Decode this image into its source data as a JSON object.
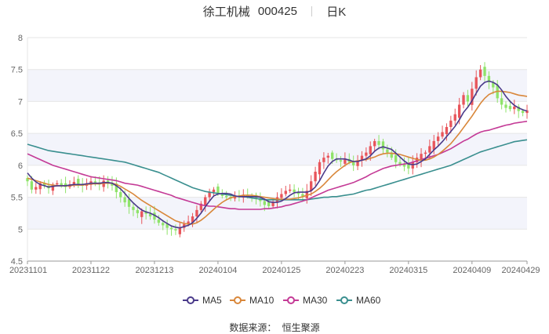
{
  "header": {
    "stock_name": "徐工机械",
    "stock_code": "000425",
    "period": "日K"
  },
  "source": {
    "label": "数据来源：",
    "value": "恒生聚源"
  },
  "colors": {
    "up": "#e8555b",
    "down": "#8fe36a",
    "ma5": "#4a3a8a",
    "ma10": "#d9873a",
    "ma30": "#c43a96",
    "ma60": "#3a8f8f",
    "grid": "#e6e6e6",
    "band": "#f3f4fb"
  },
  "chart_data": {
    "type": "candlestick",
    "yticks": [
      4.5,
      5,
      5.5,
      6,
      6.5,
      7,
      7.5,
      8
    ],
    "ylim": [
      4.5,
      8
    ],
    "xtick_labels": [
      "20231101",
      "20231122",
      "20231213",
      "20240104",
      "20240125",
      "20240223",
      "20240315",
      "20240409",
      "20240429"
    ],
    "xtick_index": [
      0,
      15,
      30,
      45,
      60,
      75,
      90,
      105,
      118
    ],
    "legend": [
      {
        "name": "MA5",
        "color_key": "ma5"
      },
      {
        "name": "MA10",
        "color_key": "ma10"
      },
      {
        "name": "MA30",
        "color_key": "ma30"
      },
      {
        "name": "MA60",
        "color_key": "ma60"
      }
    ],
    "closes": [
      5.75,
      5.62,
      5.66,
      5.72,
      5.68,
      5.64,
      5.7,
      5.72,
      5.69,
      5.66,
      5.7,
      5.74,
      5.71,
      5.68,
      5.72,
      5.75,
      5.73,
      5.7,
      5.76,
      5.72,
      5.68,
      5.58,
      5.5,
      5.42,
      5.35,
      5.3,
      5.25,
      5.28,
      5.24,
      5.2,
      5.15,
      5.1,
      5.06,
      5.02,
      5.0,
      4.98,
      5.02,
      5.08,
      5.12,
      5.2,
      5.3,
      5.4,
      5.5,
      5.58,
      5.62,
      5.56,
      5.52,
      5.5,
      5.48,
      5.52,
      5.5,
      5.54,
      5.52,
      5.5,
      5.48,
      5.44,
      5.38,
      5.36,
      5.42,
      5.5,
      5.55,
      5.6,
      5.62,
      5.58,
      5.55,
      5.52,
      5.6,
      5.75,
      5.9,
      6.05,
      6.12,
      6.15,
      6.1,
      6.08,
      6.06,
      6.1,
      6.05,
      6.0,
      6.08,
      6.15,
      6.2,
      6.3,
      6.38,
      6.32,
      6.25,
      6.2,
      6.12,
      6.05,
      6.02,
      5.98,
      5.95,
      6.05,
      6.12,
      6.18,
      6.2,
      6.3,
      6.38,
      6.45,
      6.52,
      6.6,
      6.7,
      6.8,
      6.95,
      7.1,
      7.0,
      7.2,
      7.38,
      7.5,
      7.4,
      7.3,
      7.22,
      7.05,
      6.95,
      6.9,
      6.88,
      6.92,
      6.85,
      6.82,
      6.86
    ],
    "ma5": [
      5.88,
      5.8,
      5.74,
      5.7,
      5.68,
      5.66,
      5.67,
      5.68,
      5.68,
      5.68,
      5.69,
      5.7,
      5.7,
      5.7,
      5.71,
      5.72,
      5.72,
      5.72,
      5.73,
      5.73,
      5.72,
      5.68,
      5.63,
      5.56,
      5.48,
      5.41,
      5.35,
      5.3,
      5.27,
      5.25,
      5.22,
      5.18,
      5.13,
      5.09,
      5.05,
      5.03,
      5.02,
      5.04,
      5.06,
      5.1,
      5.17,
      5.25,
      5.35,
      5.44,
      5.52,
      5.55,
      5.56,
      5.56,
      5.55,
      5.52,
      5.51,
      5.51,
      5.51,
      5.51,
      5.51,
      5.5,
      5.47,
      5.43,
      5.42,
      5.42,
      5.44,
      5.48,
      5.53,
      5.57,
      5.58,
      5.58,
      5.58,
      5.6,
      5.66,
      5.76,
      5.88,
      5.99,
      6.06,
      6.1,
      6.1,
      6.1,
      6.08,
      6.06,
      6.06,
      6.08,
      6.1,
      6.15,
      6.22,
      6.27,
      6.29,
      6.27,
      6.25,
      6.19,
      6.13,
      6.07,
      6.02,
      6.01,
      6.02,
      6.06,
      6.1,
      6.17,
      6.24,
      6.3,
      6.37,
      6.45,
      6.53,
      6.61,
      6.71,
      6.83,
      6.91,
      7.01,
      7.13,
      7.24,
      7.3,
      7.32,
      7.3,
      7.26,
      7.18,
      7.08,
      7.0,
      6.94,
      6.9,
      6.87,
      6.85
    ],
    "ma10": [
      5.8,
      5.78,
      5.76,
      5.74,
      5.72,
      5.7,
      5.69,
      5.68,
      5.68,
      5.68,
      5.68,
      5.69,
      5.69,
      5.69,
      5.7,
      5.71,
      5.71,
      5.71,
      5.72,
      5.72,
      5.72,
      5.7,
      5.67,
      5.63,
      5.59,
      5.55,
      5.5,
      5.45,
      5.41,
      5.37,
      5.33,
      5.29,
      5.25,
      5.21,
      5.17,
      5.13,
      5.11,
      5.09,
      5.08,
      5.08,
      5.1,
      5.14,
      5.19,
      5.25,
      5.31,
      5.37,
      5.42,
      5.46,
      5.49,
      5.51,
      5.52,
      5.53,
      5.53,
      5.53,
      5.52,
      5.51,
      5.5,
      5.49,
      5.48,
      5.47,
      5.47,
      5.47,
      5.47,
      5.48,
      5.49,
      5.51,
      5.53,
      5.55,
      5.59,
      5.64,
      5.7,
      5.77,
      5.84,
      5.9,
      5.95,
      6.0,
      6.04,
      6.06,
      6.07,
      6.08,
      6.09,
      6.11,
      6.13,
      6.16,
      6.18,
      6.19,
      6.19,
      6.18,
      6.17,
      6.15,
      6.13,
      6.11,
      6.09,
      6.08,
      6.08,
      6.1,
      6.13,
      6.17,
      6.22,
      6.28,
      6.34,
      6.42,
      6.5,
      6.59,
      6.68,
      6.77,
      6.87,
      6.97,
      7.05,
      7.11,
      7.14,
      7.16,
      7.16,
      7.15,
      7.14,
      7.12,
      7.1,
      7.09,
      7.08
    ],
    "ma30": [
      6.18,
      6.15,
      6.12,
      6.09,
      6.06,
      6.03,
      6.0,
      5.98,
      5.96,
      5.94,
      5.92,
      5.9,
      5.88,
      5.86,
      5.84,
      5.82,
      5.81,
      5.8,
      5.79,
      5.78,
      5.77,
      5.76,
      5.74,
      5.72,
      5.71,
      5.7,
      5.69,
      5.67,
      5.65,
      5.63,
      5.61,
      5.59,
      5.57,
      5.55,
      5.53,
      5.5,
      5.48,
      5.46,
      5.44,
      5.42,
      5.4,
      5.38,
      5.37,
      5.36,
      5.36,
      5.35,
      5.34,
      5.33,
      5.32,
      5.32,
      5.31,
      5.31,
      5.31,
      5.31,
      5.31,
      5.31,
      5.32,
      5.32,
      5.33,
      5.34,
      5.35,
      5.37,
      5.38,
      5.4,
      5.42,
      5.44,
      5.46,
      5.49,
      5.52,
      5.55,
      5.58,
      5.61,
      5.63,
      5.65,
      5.67,
      5.69,
      5.71,
      5.73,
      5.76,
      5.79,
      5.82,
      5.86,
      5.89,
      5.92,
      5.95,
      5.97,
      5.99,
      6.0,
      6.01,
      6.02,
      6.03,
      6.05,
      6.07,
      6.09,
      6.11,
      6.13,
      6.15,
      6.17,
      6.2,
      6.23,
      6.26,
      6.3,
      6.34,
      6.38,
      6.41,
      6.45,
      6.49,
      6.52,
      6.54,
      6.55,
      6.57,
      6.59,
      6.61,
      6.63,
      6.64,
      6.66,
      6.67,
      6.68,
      6.69
    ],
    "ma60": [
      6.33,
      6.31,
      6.29,
      6.27,
      6.25,
      6.23,
      6.22,
      6.21,
      6.2,
      6.19,
      6.18,
      6.17,
      6.16,
      6.15,
      6.14,
      6.13,
      6.12,
      6.11,
      6.1,
      6.09,
      6.08,
      6.07,
      6.06,
      6.05,
      6.03,
      6.01,
      5.99,
      5.97,
      5.95,
      5.93,
      5.91,
      5.89,
      5.86,
      5.83,
      5.8,
      5.77,
      5.74,
      5.71,
      5.68,
      5.65,
      5.63,
      5.61,
      5.59,
      5.58,
      5.57,
      5.56,
      5.55,
      5.54,
      5.53,
      5.52,
      5.51,
      5.51,
      5.5,
      5.49,
      5.48,
      5.47,
      5.46,
      5.46,
      5.46,
      5.46,
      5.46,
      5.46,
      5.46,
      5.46,
      5.46,
      5.46,
      5.46,
      5.47,
      5.48,
      5.49,
      5.5,
      5.5,
      5.51,
      5.51,
      5.52,
      5.53,
      5.54,
      5.55,
      5.57,
      5.59,
      5.61,
      5.62,
      5.64,
      5.66,
      5.68,
      5.7,
      5.72,
      5.74,
      5.76,
      5.78,
      5.8,
      5.82,
      5.84,
      5.86,
      5.88,
      5.9,
      5.92,
      5.94,
      5.96,
      5.98,
      6.0,
      6.03,
      6.06,
      6.09,
      6.12,
      6.15,
      6.18,
      6.21,
      6.23,
      6.25,
      6.27,
      6.29,
      6.31,
      6.33,
      6.35,
      6.37,
      6.38,
      6.39,
      6.4
    ]
  }
}
